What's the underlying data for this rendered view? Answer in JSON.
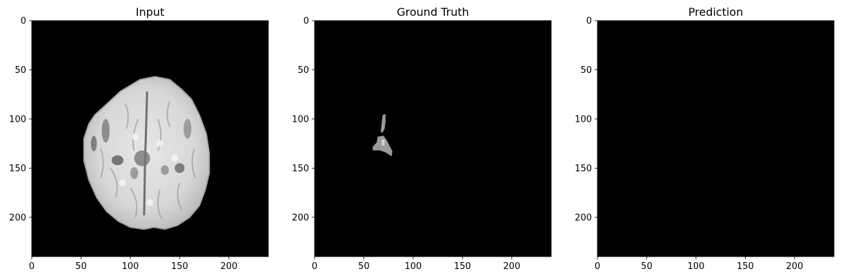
{
  "chart_data": {
    "type": "heatmap",
    "image_size": [
      240,
      240
    ],
    "panels": [
      {
        "title": "Input",
        "content": "brain-mri-axial-slice",
        "xticks": [
          0,
          50,
          100,
          150,
          200
        ],
        "yticks": [
          0,
          50,
          100,
          150,
          200
        ],
        "xlim": [
          0,
          240
        ],
        "ylim": [
          240,
          0
        ],
        "background_color": "#000000"
      },
      {
        "title": "Ground Truth",
        "content": "tumor-segmentation-mask",
        "mask_region": {
          "x_range": [
            60,
            78
          ],
          "y_range": [
            95,
            138
          ],
          "values_colors": [
            "#9a9a9a",
            "#d2d2d2"
          ]
        },
        "xticks": [
          0,
          50,
          100,
          150,
          200
        ],
        "yticks": [
          0,
          50,
          100,
          150,
          200
        ],
        "xlim": [
          0,
          240
        ],
        "ylim": [
          240,
          0
        ],
        "background_color": "#000000"
      },
      {
        "title": "Prediction",
        "content": "empty-prediction-mask",
        "xticks": [
          0,
          50,
          100,
          150,
          200
        ],
        "yticks": [
          0,
          50,
          100,
          150,
          200
        ],
        "xlim": [
          0,
          240
        ],
        "ylim": [
          240,
          0
        ],
        "background_color": "#000000"
      }
    ],
    "grid": false,
    "colormap": "gray"
  }
}
